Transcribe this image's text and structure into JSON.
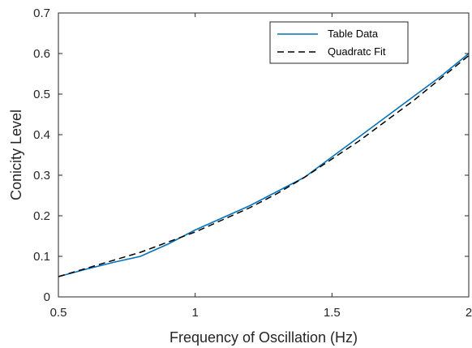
{
  "chart_data": {
    "type": "line",
    "title": "",
    "xlabel": "Frequency of Oscillation (Hz)",
    "ylabel": "Conicity Level",
    "xlim": [
      0.5,
      2
    ],
    "ylim": [
      0,
      0.7
    ],
    "xticks": [
      0.5,
      1,
      1.5,
      2
    ],
    "xtick_labels": [
      "0.5",
      "1",
      "1.5",
      "2"
    ],
    "yticks": [
      0,
      0.1,
      0.2,
      0.3,
      0.4,
      0.5,
      0.6,
      0.7
    ],
    "ytick_labels": [
      "0",
      "0.1",
      "0.2",
      "0.3",
      "0.4",
      "0.5",
      "0.6",
      "0.7"
    ],
    "grid": false,
    "legend_position": "top-right",
    "series": [
      {
        "name": "Table Data",
        "color": "#0072BD",
        "line_style": "solid",
        "x": [
          0.5,
          0.6,
          0.7,
          0.8,
          0.9,
          1.0,
          1.1,
          1.2,
          1.3,
          1.4,
          1.5,
          1.6,
          1.7,
          1.8,
          1.9,
          2.0
        ],
        "y": [
          0.05,
          0.068,
          0.085,
          0.1,
          0.13,
          0.165,
          0.195,
          0.225,
          0.26,
          0.295,
          0.345,
          0.395,
          0.445,
          0.495,
          0.545,
          0.6
        ]
      },
      {
        "name": "Quadratc Fit",
        "color": "#000000",
        "line_style": "dashed",
        "x": [
          0.5,
          0.6,
          0.7,
          0.8,
          0.9,
          1.0,
          1.1,
          1.2,
          1.3,
          1.4,
          1.5,
          1.6,
          1.7,
          1.8,
          1.9,
          2.0
        ],
        "y": [
          0.05,
          0.07,
          0.09,
          0.11,
          0.135,
          0.16,
          0.19,
          0.22,
          0.255,
          0.295,
          0.34,
          0.385,
          0.435,
          0.485,
          0.54,
          0.595
        ]
      }
    ]
  }
}
